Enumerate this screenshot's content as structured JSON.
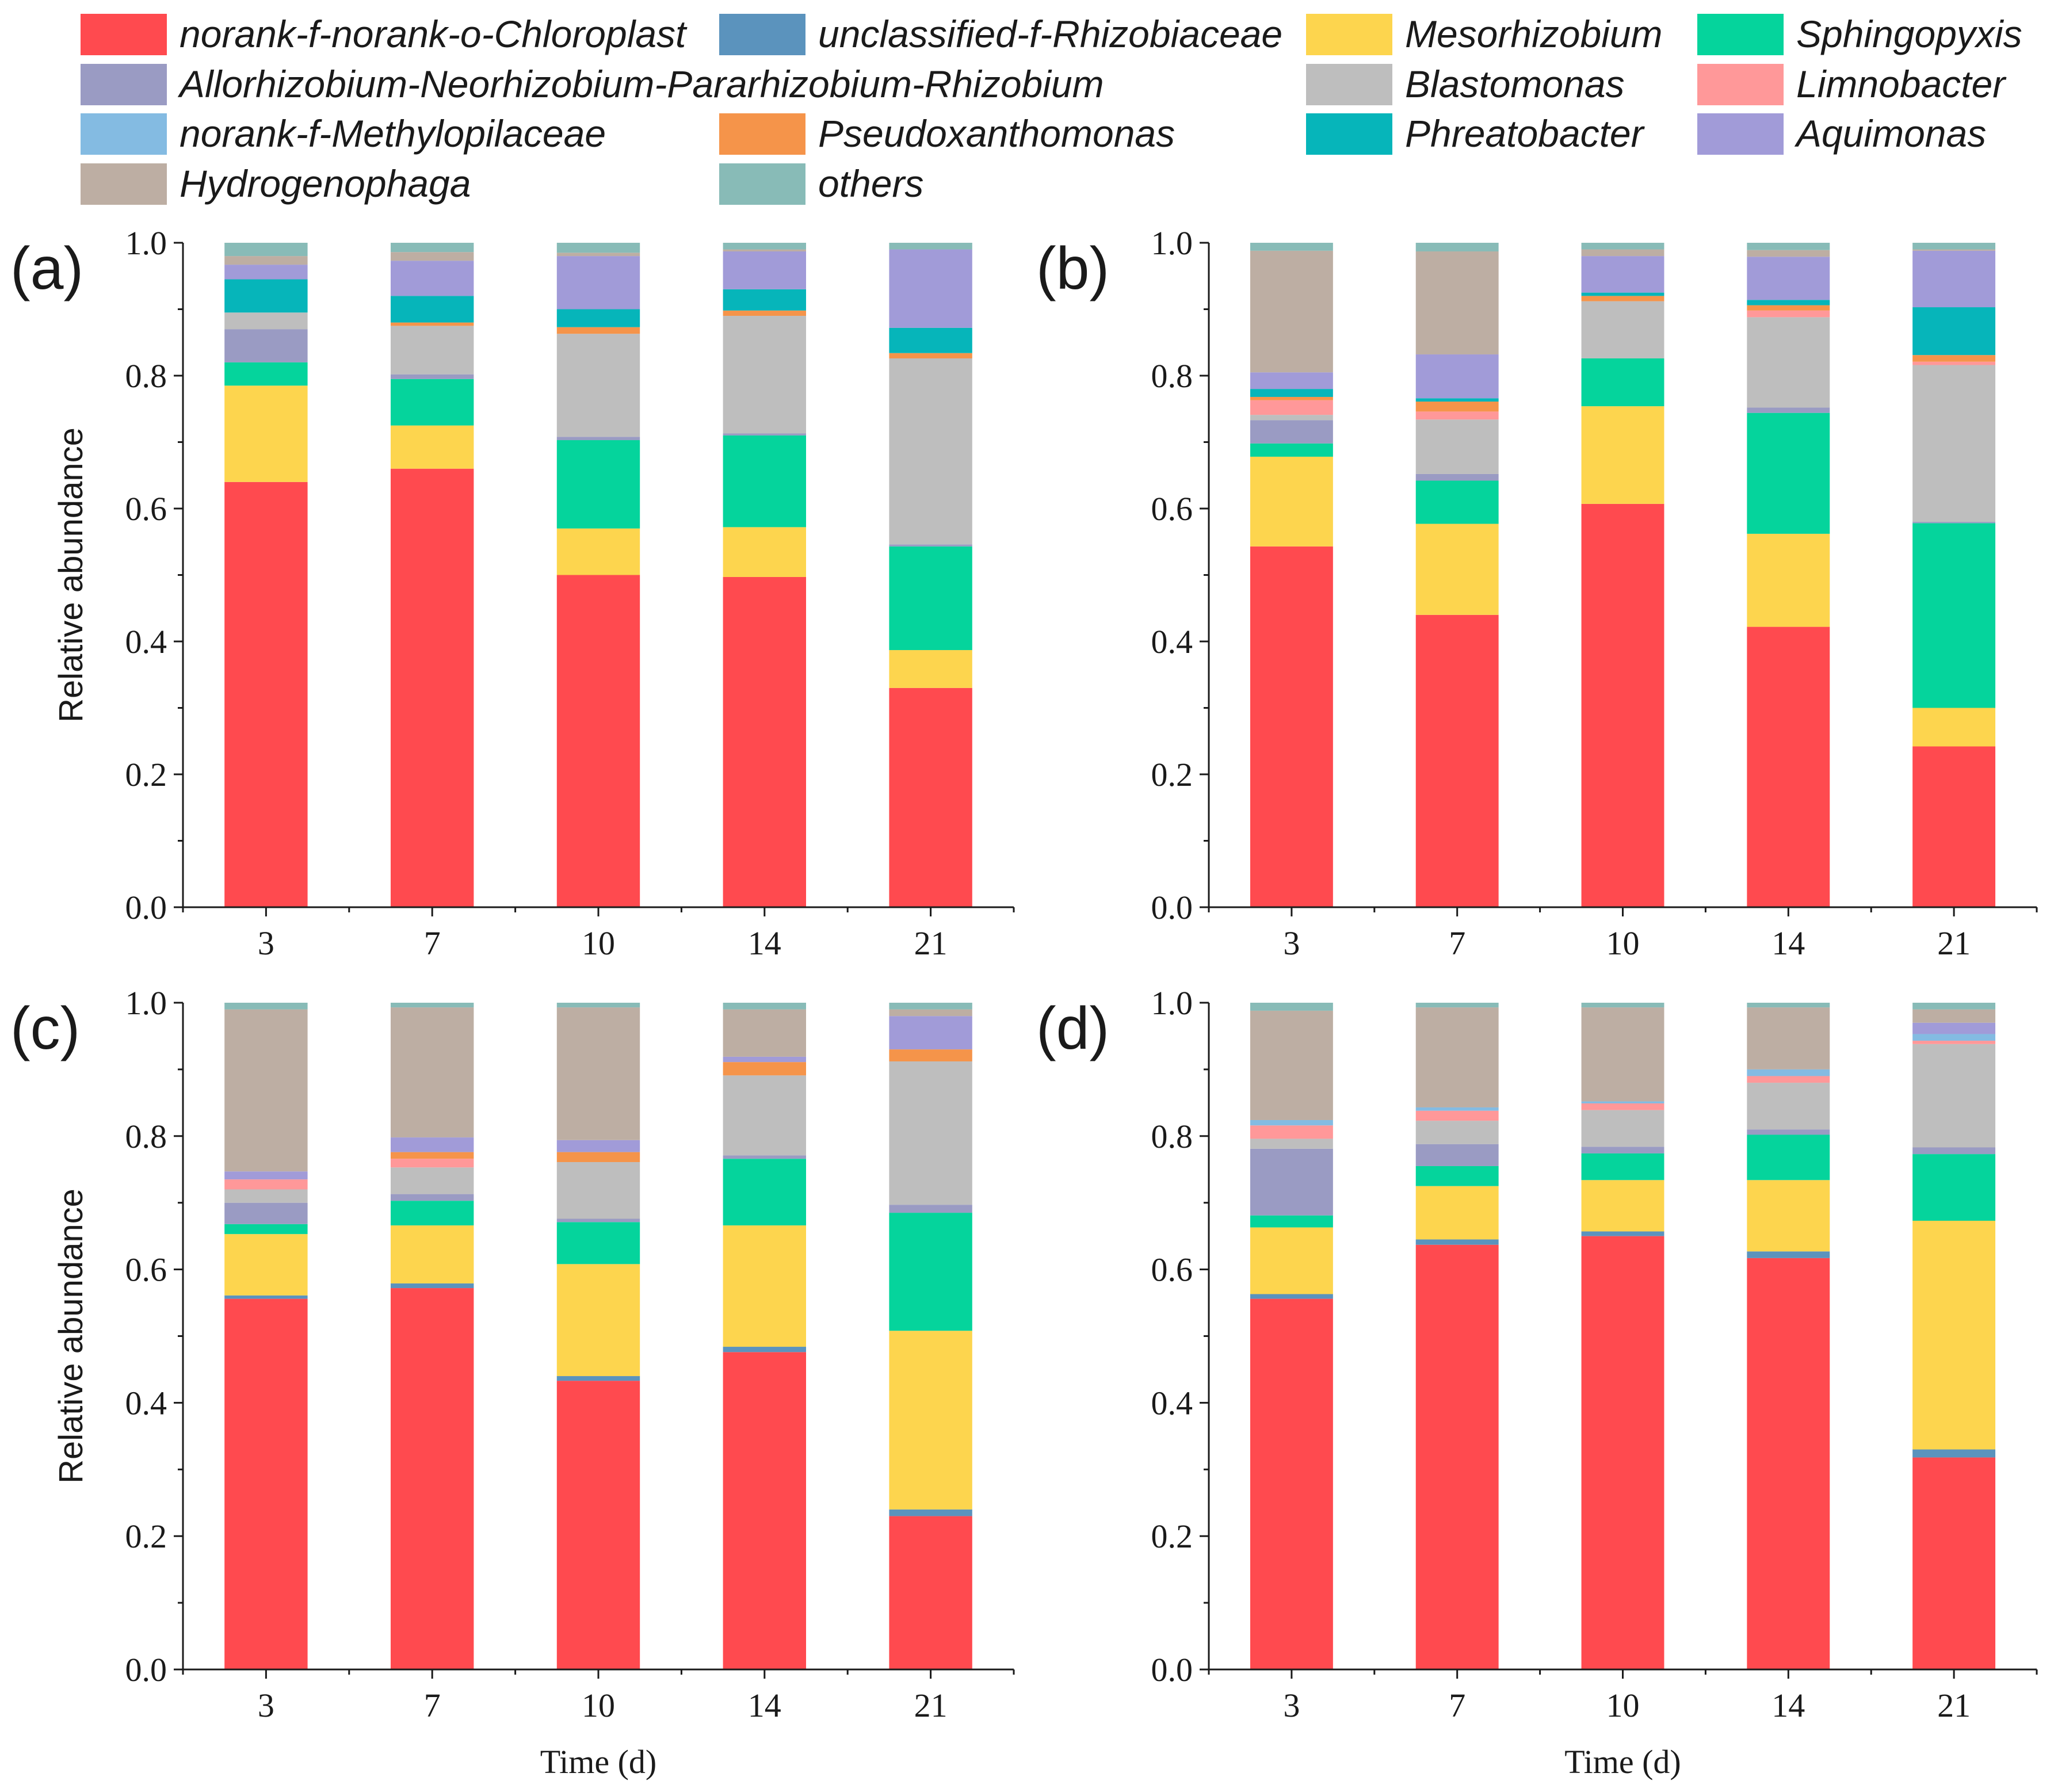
{
  "legend": {
    "items": [
      {
        "name": "norank-f-norank-o-Chloroplast",
        "color": "#FF4A4F"
      },
      {
        "name": "unclassified-f-Rhizobiaceae",
        "color": "#5B93BD"
      },
      {
        "name": "Mesorhizobium",
        "color": "#FDD54E"
      },
      {
        "name": "Sphingopyxis",
        "color": "#05D49C"
      },
      {
        "name": "Allorhizobium-Neorhizobium-Pararhizobium-Rhizobium",
        "color": "#9A9BC3"
      },
      {
        "name": "Blastomonas",
        "color": "#BEBEBE"
      },
      {
        "name": "Limnobacter",
        "color": "#FF9899"
      },
      {
        "name": "norank-f-Methylopilaceae",
        "color": "#84BBE2"
      },
      {
        "name": "Pseudoxanthomonas",
        "color": "#F5944A"
      },
      {
        "name": "Phreatobacter",
        "color": "#06B5BA"
      },
      {
        "name": "Aquimonas",
        "color": "#A19BD8"
      },
      {
        "name": "Hydrogenophaga",
        "color": "#BDAEA3"
      },
      {
        "name": "others",
        "color": "#88BBB7"
      }
    ]
  },
  "chart_data": [
    {
      "type": "bar",
      "stacked": true,
      "panel_label": "(a)",
      "categories": [
        "3",
        "7",
        "10",
        "14",
        "21"
      ],
      "xlabel": "",
      "ylabel": "Relative abundance",
      "ylim": [
        0,
        1.0
      ],
      "yticks": [
        "0.0",
        "0.2",
        "0.4",
        "0.6",
        "0.8",
        "1.0"
      ],
      "series": [
        {
          "name": "norank-f-norank-o-Chloroplast",
          "values": [
            0.64,
            0.66,
            0.5,
            0.497,
            0.33
          ]
        },
        {
          "name": "unclassified-f-Rhizobiaceae",
          "values": [
            0.0,
            0.0,
            0.0,
            0.0,
            0.0
          ]
        },
        {
          "name": "Mesorhizobium",
          "values": [
            0.145,
            0.065,
            0.07,
            0.075,
            0.057
          ]
        },
        {
          "name": "Sphingopyxis",
          "values": [
            0.035,
            0.07,
            0.133,
            0.138,
            0.156
          ]
        },
        {
          "name": "Allorhizobium-Neorhizobium-Pararhizobium-Rhizobium",
          "values": [
            0.05,
            0.007,
            0.005,
            0.003,
            0.003
          ]
        },
        {
          "name": "Blastomonas",
          "values": [
            0.025,
            0.073,
            0.155,
            0.177,
            0.28
          ]
        },
        {
          "name": "Limnobacter",
          "values": [
            0.0,
            0.0,
            0.0,
            0.0,
            0.0
          ]
        },
        {
          "name": "norank-f-Methylopilaceae",
          "values": [
            0.0,
            0.0,
            0.0,
            0.0,
            0.0
          ]
        },
        {
          "name": "Pseudoxanthomonas",
          "values": [
            0.0,
            0.005,
            0.01,
            0.008,
            0.008
          ]
        },
        {
          "name": "Phreatobacter",
          "values": [
            0.05,
            0.04,
            0.027,
            0.032,
            0.038
          ]
        },
        {
          "name": "Aquimonas",
          "values": [
            0.022,
            0.053,
            0.08,
            0.057,
            0.118
          ]
        },
        {
          "name": "Hydrogenophaga",
          "values": [
            0.013,
            0.013,
            0.005,
            0.003,
            0.0
          ]
        },
        {
          "name": "others",
          "values": [
            0.02,
            0.014,
            0.015,
            0.01,
            0.01
          ]
        }
      ]
    },
    {
      "type": "bar",
      "stacked": true,
      "panel_label": "(b)",
      "categories": [
        "3",
        "7",
        "10",
        "14",
        "21"
      ],
      "xlabel": "",
      "ylabel": "",
      "ylim": [
        0,
        1.0
      ],
      "yticks": [
        "0.0",
        "0.2",
        "0.4",
        "0.6",
        "0.8",
        "1.0"
      ],
      "series": [
        {
          "name": "norank-f-norank-o-Chloroplast",
          "values": [
            0.543,
            0.44,
            0.607,
            0.422,
            0.242
          ]
        },
        {
          "name": "unclassified-f-Rhizobiaceae",
          "values": [
            0.0,
            0.0,
            0.0,
            0.0,
            0.0
          ]
        },
        {
          "name": "Mesorhizobium",
          "values": [
            0.135,
            0.137,
            0.147,
            0.14,
            0.058
          ]
        },
        {
          "name": "Sphingopyxis",
          "values": [
            0.02,
            0.065,
            0.072,
            0.182,
            0.278
          ]
        },
        {
          "name": "Allorhizobium-Neorhizobium-Pararhizobium-Rhizobium",
          "values": [
            0.035,
            0.01,
            0.0,
            0.008,
            0.002
          ]
        },
        {
          "name": "Blastomonas",
          "values": [
            0.008,
            0.082,
            0.086,
            0.136,
            0.236
          ]
        },
        {
          "name": "Limnobacter",
          "values": [
            0.022,
            0.012,
            0.0,
            0.01,
            0.005
          ]
        },
        {
          "name": "norank-f-Methylopilaceae",
          "values": [
            0.0,
            0.0,
            0.0,
            0.0,
            0.0
          ]
        },
        {
          "name": "Pseudoxanthomonas",
          "values": [
            0.005,
            0.015,
            0.008,
            0.008,
            0.01
          ]
        },
        {
          "name": "Phreatobacter",
          "values": [
            0.012,
            0.005,
            0.005,
            0.008,
            0.072
          ]
        },
        {
          "name": "Aquimonas",
          "values": [
            0.025,
            0.066,
            0.055,
            0.065,
            0.085
          ]
        },
        {
          "name": "Hydrogenophaga",
          "values": [
            0.183,
            0.155,
            0.01,
            0.01,
            0.002
          ]
        },
        {
          "name": "others",
          "values": [
            0.012,
            0.013,
            0.01,
            0.011,
            0.01
          ]
        }
      ]
    },
    {
      "type": "bar",
      "stacked": true,
      "panel_label": "(c)",
      "categories": [
        "3",
        "7",
        "10",
        "14",
        "21"
      ],
      "xlabel": "Time (d)",
      "ylabel": "Relative abundance",
      "ylim": [
        0,
        1.0
      ],
      "yticks": [
        "0.0",
        "0.2",
        "0.4",
        "0.6",
        "0.8",
        "1.0"
      ],
      "series": [
        {
          "name": "norank-f-norank-o-Chloroplast",
          "values": [
            0.556,
            0.572,
            0.433,
            0.476,
            0.23
          ]
        },
        {
          "name": "unclassified-f-Rhizobiaceae",
          "values": [
            0.005,
            0.007,
            0.007,
            0.008,
            0.01
          ]
        },
        {
          "name": "Mesorhizobium",
          "values": [
            0.092,
            0.087,
            0.168,
            0.182,
            0.268
          ]
        },
        {
          "name": "Sphingopyxis",
          "values": [
            0.015,
            0.037,
            0.063,
            0.1,
            0.177
          ]
        },
        {
          "name": "Allorhizobium-Neorhizobium-Pararhizobium-Rhizobium",
          "values": [
            0.032,
            0.01,
            0.005,
            0.005,
            0.012
          ]
        },
        {
          "name": "Blastomonas",
          "values": [
            0.02,
            0.04,
            0.085,
            0.12,
            0.215
          ]
        },
        {
          "name": "Limnobacter",
          "values": [
            0.015,
            0.013,
            0.0,
            0.0,
            0.0
          ]
        },
        {
          "name": "norank-f-Methylopilaceae",
          "values": [
            0.0,
            0.0,
            0.0,
            0.0,
            0.0
          ]
        },
        {
          "name": "Pseudoxanthomonas",
          "values": [
            0.0,
            0.01,
            0.015,
            0.02,
            0.018
          ]
        },
        {
          "name": "Phreatobacter",
          "values": [
            0.0,
            0.0,
            0.0,
            0.0,
            0.0
          ]
        },
        {
          "name": "Aquimonas",
          "values": [
            0.012,
            0.022,
            0.018,
            0.008,
            0.05
          ]
        },
        {
          "name": "Hydrogenophaga",
          "values": [
            0.243,
            0.195,
            0.199,
            0.071,
            0.01
          ]
        },
        {
          "name": "others",
          "values": [
            0.01,
            0.007,
            0.007,
            0.01,
            0.01
          ]
        }
      ]
    },
    {
      "type": "bar",
      "stacked": true,
      "panel_label": "(d)",
      "categories": [
        "3",
        "7",
        "10",
        "14",
        "21"
      ],
      "xlabel": "Time (d)",
      "ylabel": "",
      "ylim": [
        0,
        1.0
      ],
      "yticks": [
        "0.0",
        "0.2",
        "0.4",
        "0.6",
        "0.8",
        "1.0"
      ],
      "series": [
        {
          "name": "norank-f-norank-o-Chloroplast",
          "values": [
            0.556,
            0.637,
            0.65,
            0.617,
            0.318
          ]
        },
        {
          "name": "unclassified-f-Rhizobiaceae",
          "values": [
            0.007,
            0.008,
            0.007,
            0.01,
            0.012
          ]
        },
        {
          "name": "Mesorhizobium",
          "values": [
            0.1,
            0.08,
            0.077,
            0.107,
            0.343
          ]
        },
        {
          "name": "Sphingopyxis",
          "values": [
            0.018,
            0.03,
            0.04,
            0.068,
            0.1
          ]
        },
        {
          "name": "Allorhizobium-Neorhizobium-Pararhizobium-Rhizobium",
          "values": [
            0.1,
            0.033,
            0.01,
            0.008,
            0.01
          ]
        },
        {
          "name": "Blastomonas",
          "values": [
            0.015,
            0.035,
            0.055,
            0.07,
            0.155
          ]
        },
        {
          "name": "Limnobacter",
          "values": [
            0.02,
            0.015,
            0.01,
            0.01,
            0.005
          ]
        },
        {
          "name": "norank-f-Methylopilaceae",
          "values": [
            0.008,
            0.005,
            0.003,
            0.01,
            0.01
          ]
        },
        {
          "name": "Pseudoxanthomonas",
          "values": [
            0.0,
            0.0,
            0.0,
            0.0,
            0.0
          ]
        },
        {
          "name": "Phreatobacter",
          "values": [
            0.0,
            0.0,
            0.0,
            0.0,
            0.0
          ]
        },
        {
          "name": "Aquimonas",
          "values": [
            0.0,
            0.0,
            0.0,
            0.0,
            0.017
          ]
        },
        {
          "name": "Hydrogenophaga",
          "values": [
            0.164,
            0.15,
            0.141,
            0.093,
            0.02
          ]
        },
        {
          "name": "others",
          "values": [
            0.012,
            0.007,
            0.007,
            0.007,
            0.01
          ]
        }
      ]
    }
  ]
}
